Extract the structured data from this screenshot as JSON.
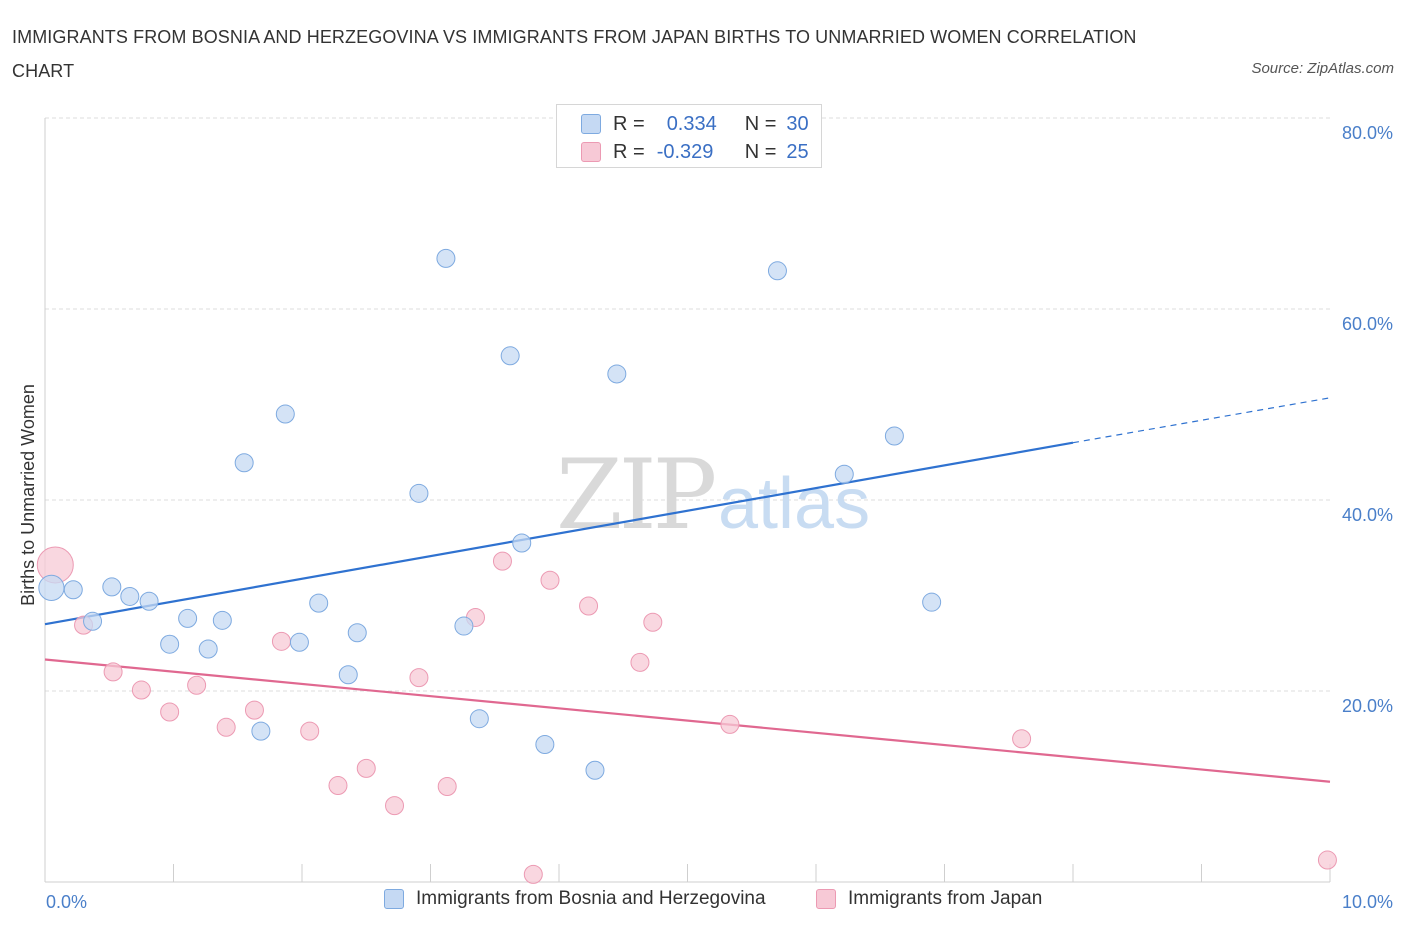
{
  "title": "IMMIGRANTS FROM BOSNIA AND HERZEGOVINA VS IMMIGRANTS FROM JAPAN BIRTHS TO UNMARRIED WOMEN CORRELATION CHART",
  "source": "Source: ZipAtlas.com",
  "watermark": {
    "zip": "ZIP",
    "atlas": "atlas"
  },
  "legend": {
    "rows": [
      {
        "r_label": "R =",
        "r_value": "0.334",
        "n_label": "N =",
        "n_value": "30"
      },
      {
        "r_label": "R =",
        "r_value": "-0.329",
        "n_label": "N =",
        "n_value": "25"
      }
    ]
  },
  "colors": {
    "blue_fill": "#c5d9f3",
    "blue_stroke": "#7eaae0",
    "blue_line": "#2f72d0",
    "pink_fill": "#f7c9d6",
    "pink_stroke": "#ec9ab3",
    "pink_line": "#e06890",
    "grid": "#dcdcdc",
    "tick_text": "#4a7fc9"
  },
  "chart_data": {
    "type": "scatter",
    "title": "IMMIGRANTS FROM BOSNIA AND HERZEGOVINA VS IMMIGRANTS FROM JAPAN BIRTHS TO UNMARRIED WOMEN CORRELATION CHART",
    "xlabel": "",
    "ylabel": "Births to Unmarried Women",
    "xlim": [
      0,
      10
    ],
    "ylim": [
      0,
      80
    ],
    "x_tick_labels": [
      "0.0%",
      "10.0%"
    ],
    "y_ticks": [
      20,
      40,
      60,
      80
    ],
    "y_tick_labels": [
      "20.0%",
      "40.0%",
      "60.0%",
      "80.0%"
    ],
    "grid": true,
    "legend_position": "top-center",
    "series": [
      {
        "name": "Immigrants from Bosnia and Herzegovina",
        "color": "blue",
        "r": 0.334,
        "n": 30,
        "points": [
          [
            0.05,
            30.8
          ],
          [
            0.22,
            30.6
          ],
          [
            0.37,
            27.3
          ],
          [
            0.52,
            30.9
          ],
          [
            0.66,
            29.9
          ],
          [
            0.81,
            29.4
          ],
          [
            0.97,
            24.9
          ],
          [
            1.11,
            27.6
          ],
          [
            1.27,
            24.4
          ],
          [
            1.38,
            27.4
          ],
          [
            1.55,
            43.9
          ],
          [
            1.68,
            15.8
          ],
          [
            1.87,
            49.0
          ],
          [
            1.98,
            25.1
          ],
          [
            2.13,
            29.2
          ],
          [
            2.36,
            21.7
          ],
          [
            2.43,
            26.1
          ],
          [
            2.91,
            40.7
          ],
          [
            3.12,
            65.3
          ],
          [
            3.26,
            26.8
          ],
          [
            3.38,
            17.1
          ],
          [
            3.62,
            55.1
          ],
          [
            3.71,
            35.5
          ],
          [
            3.89,
            14.4
          ],
          [
            4.28,
            11.7
          ],
          [
            4.45,
            53.2
          ],
          [
            5.7,
            64.0
          ],
          [
            6.22,
            42.7
          ],
          [
            6.61,
            46.7
          ],
          [
            6.9,
            29.3
          ]
        ],
        "point_sizes": [
          1.4,
          1,
          1,
          1,
          1,
          1,
          1,
          1,
          1,
          1,
          1,
          1,
          1,
          1,
          1,
          1,
          1,
          1,
          1,
          1,
          1,
          1,
          1,
          1,
          1,
          1,
          1,
          1,
          1,
          1
        ],
        "trend": {
          "x1": 0.0,
          "y1": 27.0,
          "x2": 8.0,
          "y2": 46.0,
          "dash_to_x": 10.0,
          "dash_to_y": 50.7
        }
      },
      {
        "name": "Immigrants from Japan",
        "color": "pink",
        "r": -0.329,
        "n": 25,
        "points": [
          [
            0.08,
            33.2
          ],
          [
            0.3,
            26.9
          ],
          [
            0.53,
            22.0
          ],
          [
            0.75,
            20.1
          ],
          [
            0.97,
            17.8
          ],
          [
            1.18,
            20.6
          ],
          [
            1.41,
            16.2
          ],
          [
            1.63,
            18.0
          ],
          [
            1.84,
            25.2
          ],
          [
            2.06,
            15.8
          ],
          [
            2.28,
            10.1
          ],
          [
            2.5,
            11.9
          ],
          [
            2.72,
            8.0
          ],
          [
            2.91,
            21.4
          ],
          [
            3.13,
            10.0
          ],
          [
            3.35,
            27.7
          ],
          [
            3.56,
            33.6
          ],
          [
            3.8,
            0.8
          ],
          [
            3.93,
            31.6
          ],
          [
            4.23,
            28.9
          ],
          [
            4.63,
            23.0
          ],
          [
            4.73,
            27.2
          ],
          [
            5.33,
            16.5
          ],
          [
            7.6,
            15.0
          ],
          [
            9.98,
            2.3
          ]
        ],
        "point_sizes": [
          2.0,
          1,
          1,
          1,
          1,
          1,
          1,
          1,
          1,
          1,
          1,
          1,
          1,
          1,
          1,
          1,
          1,
          1,
          1,
          1,
          1,
          1,
          1,
          1,
          1
        ],
        "trend": {
          "x1": 0.0,
          "y1": 23.3,
          "x2": 10.0,
          "y2": 10.5
        }
      }
    ]
  }
}
